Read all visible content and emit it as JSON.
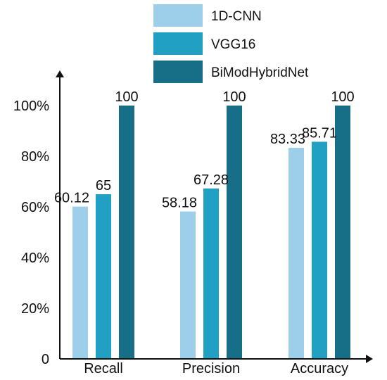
{
  "chart_data": {
    "type": "bar",
    "title": "",
    "xlabel": "",
    "ylabel": "",
    "categories": [
      "Recall",
      "Precision",
      "Accuracy"
    ],
    "series": [
      {
        "name": "1D-CNN",
        "values": [
          60.12,
          58.18,
          83.33
        ],
        "color": "#9DCFEA"
      },
      {
        "name": "VGG16",
        "values": [
          65,
          67.28,
          85.71
        ],
        "color": "#21A0C4"
      },
      {
        "name": "BiModHybridNet",
        "values": [
          100,
          100,
          100
        ],
        "color": "#166F87"
      }
    ],
    "data_labels": [
      [
        "60.12",
        "65",
        "100"
      ],
      [
        "58.18",
        "67.28",
        "100"
      ],
      [
        "83.33",
        "85.71",
        "100"
      ]
    ],
    "ylim": [
      0,
      100
    ],
    "yticks": [
      0,
      20,
      40,
      60,
      80,
      100
    ],
    "ytick_labels": [
      "0",
      "20%",
      "40%",
      "60%",
      "80%",
      "100%"
    ],
    "grid": false,
    "legend_position": "top-center"
  }
}
